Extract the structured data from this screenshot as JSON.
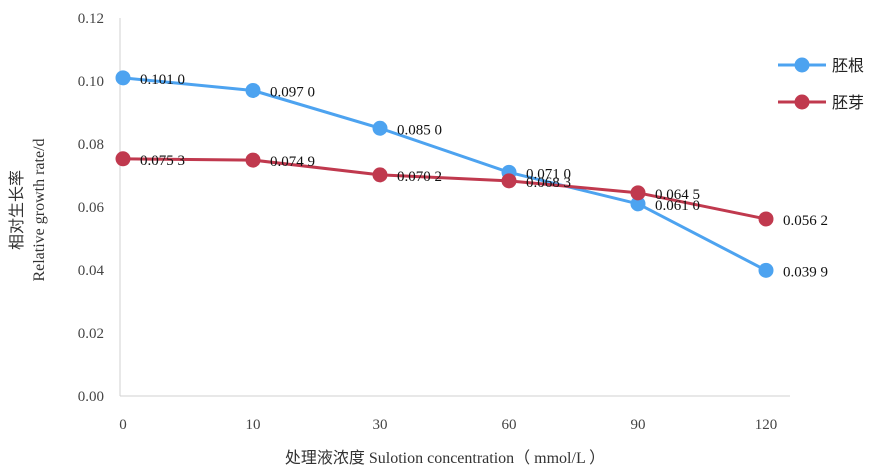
{
  "chart_data": {
    "type": "line",
    "categories": [
      "0",
      "10",
      "30",
      "60",
      "90",
      "120"
    ],
    "series": [
      {
        "name": "胚根",
        "color": "#4da3f0",
        "values": [
          0.101,
          0.097,
          0.085,
          0.071,
          0.061,
          0.0399
        ],
        "labels": [
          "0.101 0",
          "0.097 0",
          "0.085 0",
          "0.071 0",
          "0.061 0",
          "0.039 9"
        ]
      },
      {
        "name": "胚芽",
        "color": "#c0394e",
        "values": [
          0.0753,
          0.0749,
          0.0702,
          0.0683,
          0.0645,
          0.0562
        ],
        "labels": [
          "0.075 3",
          "0.074 9",
          "0.070 2",
          "0.068 3",
          "0.064 5",
          "0.056 2"
        ]
      }
    ],
    "yticks": [
      "0.00",
      "0.02",
      "0.04",
      "0.06",
      "0.08",
      "0.10",
      "0.12"
    ],
    "ylim": [
      0,
      0.12
    ],
    "xlabel": "处理液浓度 Sulotion concentration（ mmol/L ）",
    "ylabel_cn": "相对生长率",
    "ylabel_en": "Relative growth rate/d",
    "legend_position": "right",
    "grid": false
  }
}
